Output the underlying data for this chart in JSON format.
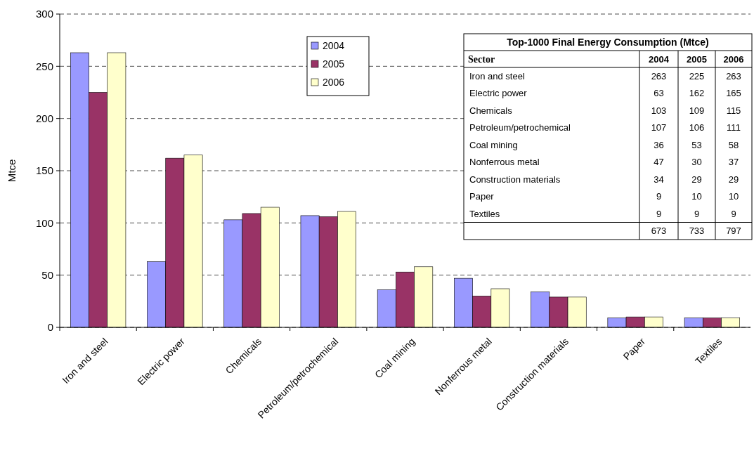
{
  "chart_data": [
    {
      "type": "bar",
      "ylabel": "Mtce",
      "categories": [
        "Iron and steel",
        "Electric power",
        "Chemicals",
        "Petroleum/petrochemical",
        "Coal mining",
        "Nonferrous metal",
        "Construction materials",
        "Paper",
        "Textiles"
      ],
      "series": [
        {
          "name": "2004",
          "color": "#9999ff",
          "values": [
            263,
            63,
            103,
            107,
            36,
            47,
            34,
            9,
            9
          ]
        },
        {
          "name": "2005",
          "color": "#993366",
          "values": [
            225,
            162,
            109,
            106,
            53,
            30,
            29,
            10,
            9
          ]
        },
        {
          "name": "2006",
          "color": "#ffffcc",
          "values": [
            263,
            165,
            115,
            111,
            58,
            37,
            29,
            10,
            9
          ]
        }
      ],
      "ylim": [
        0,
        300
      ],
      "yticks": [
        0,
        50,
        100,
        150,
        200,
        250,
        300
      ],
      "grid": "y",
      "legend": "top"
    },
    {
      "type": "other",
      "title": "Top-1000 Final Energy Consumption (Mtce)",
      "annotations": [
        "Sector",
        "2004",
        "2005",
        "2006",
        "Iron and steel",
        "263",
        "225",
        "263",
        "Electric power",
        "63",
        "162",
        "165",
        "Chemicals",
        "103",
        "109",
        "115",
        "Petroleum/petrochemical",
        "107",
        "106",
        "111",
        "Coal mining",
        "36",
        "53",
        "58",
        "Nonferrous metal",
        "47",
        "30",
        "37",
        "Construction materials",
        "34",
        "29",
        "29",
        "Paper",
        "9",
        "10",
        "10",
        "Textiles",
        "9",
        "9",
        "9",
        "673",
        "733",
        "797"
      ]
    }
  ]
}
